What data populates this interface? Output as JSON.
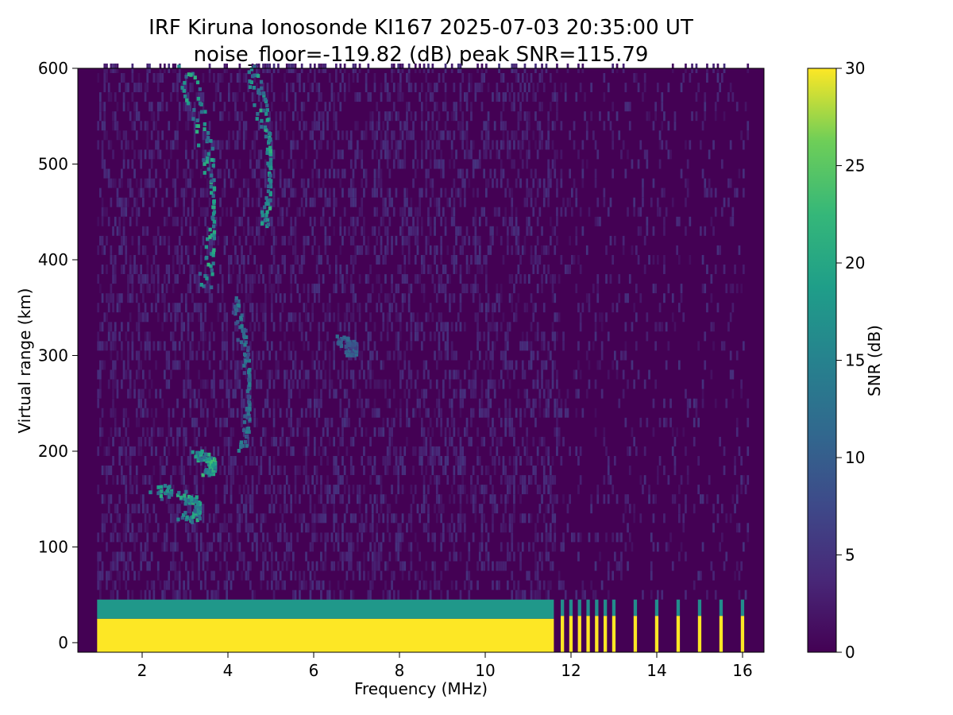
{
  "chart_data": {
    "type": "heatmap",
    "title_line1": "IRF Kiruna Ionosonde KI167 2025-07-03 20:35:00  UT",
    "title_line2": "noise_floor=-119.82 (dB) peak SNR=115.79",
    "xlabel": "Frequency (MHz)",
    "ylabel": "Virtual range (km)",
    "xlim": [
      0.5,
      16.5
    ],
    "ylim": [
      -10,
      600
    ],
    "x_ticks": [
      2,
      4,
      6,
      8,
      10,
      12,
      14,
      16
    ],
    "y_ticks": [
      0,
      100,
      200,
      300,
      400,
      500,
      600
    ],
    "sounding_start_mhz": 0.95,
    "sounding_end_mhz": 16.15,
    "sparse_above_mhz": 11.7,
    "colorbar": {
      "label": "SNR (dB)",
      "range": [
        0,
        30
      ],
      "ticks": [
        0,
        5,
        10,
        15,
        20,
        25,
        30
      ],
      "colormap": "viridis"
    },
    "features": [
      {
        "name": "direct-wave",
        "freq_range": [
          0.95,
          11.6
        ],
        "range_km": [
          -10,
          25
        ],
        "snr_db": 30
      },
      {
        "name": "direct-wave-fringe",
        "freq_range": [
          0.95,
          11.6
        ],
        "range_km": [
          25,
          45
        ],
        "snr_db": 18
      },
      {
        "name": "e-layer-trace",
        "freq_range": [
          1.7,
          3.4
        ],
        "range_km": [
          125,
          160
        ],
        "snr_db": 22
      },
      {
        "name": "es-trace",
        "freq_range": [
          3.0,
          3.7
        ],
        "range_km": [
          175,
          195
        ],
        "snr_db": 24
      },
      {
        "name": "f-layer-o-trace",
        "freq_range": [
          2.6,
          3.7
        ],
        "range_km": [
          370,
          600
        ],
        "snr_db": 22
      },
      {
        "name": "f-layer-x-trace",
        "freq_range": [
          4.3,
          5.0
        ],
        "range_km": [
          430,
          600
        ],
        "snr_db": 22
      },
      {
        "name": "f-layer-low-trace",
        "freq_range": [
          3.9,
          4.5
        ],
        "range_km": [
          200,
          360
        ],
        "snr_db": 15
      },
      {
        "name": "spread-echo",
        "freq_range": [
          6.3,
          7.0
        ],
        "range_km": [
          300,
          315
        ],
        "snr_db": 12
      }
    ],
    "comb_frequencies_mhz": [
      11.8,
      12.0,
      12.2,
      12.4,
      12.6,
      12.8,
      13.0,
      13.5,
      14.0,
      14.5,
      15.0,
      15.5,
      16.0
    ]
  }
}
